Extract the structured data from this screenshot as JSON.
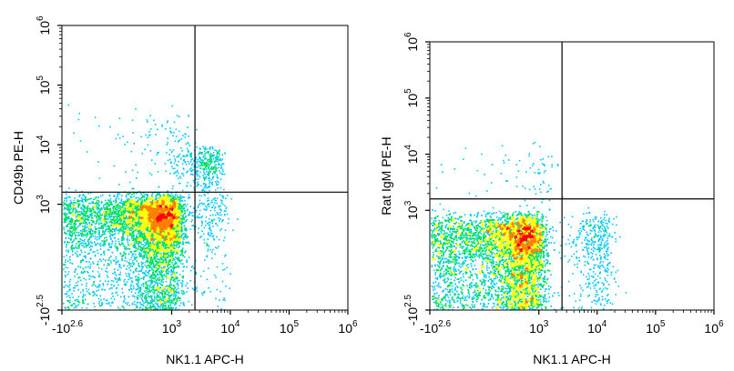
{
  "chart_data": [
    {
      "type": "scatter",
      "xlabel": "NK1.1 APC-H",
      "ylabel": "CD49b PE-H",
      "x_scale": "biexponential",
      "y_scale": "biexponential",
      "x_ticks": [
        {
          "value": -398,
          "base": "-10",
          "exp": "2.6"
        },
        {
          "value": 1000,
          "base": "10",
          "exp": "3"
        },
        {
          "value": 10000,
          "base": "10",
          "exp": "4"
        },
        {
          "value": 100000,
          "base": "10",
          "exp": "5"
        },
        {
          "value": 1000000,
          "base": "10",
          "exp": "6"
        }
      ],
      "y_ticks": [
        {
          "value": -316,
          "base": "-10",
          "exp": "2.5"
        },
        {
          "value": 1000,
          "base": "10",
          "exp": "3"
        },
        {
          "value": 10000,
          "base": "10",
          "exp": "4"
        },
        {
          "value": 100000,
          "base": "10",
          "exp": "5"
        },
        {
          "value": 1000000,
          "base": "10",
          "exp": "6"
        }
      ],
      "gate": {
        "x": 2500,
        "y": 1600
      },
      "populations": [
        {
          "cx": 400,
          "cy": 400,
          "sx": 500,
          "sy": 450,
          "n": 9000
        },
        {
          "cx": 3500,
          "cy": 4000,
          "sx": 1800,
          "sy": 2500,
          "n": 500
        },
        {
          "cx": 700,
          "cy": 5000,
          "sx": 900,
          "sy": 15000,
          "n": 220
        },
        {
          "cx": 4000,
          "cy": 400,
          "sx": 2500,
          "sy": 500,
          "n": 280
        }
      ]
    },
    {
      "type": "scatter",
      "xlabel": "NK1.1 APC-H",
      "ylabel": "Rat IgM PE-H",
      "x_scale": "biexponential",
      "y_scale": "biexponential",
      "x_ticks": [
        {
          "value": -398,
          "base": "-10",
          "exp": "2.6"
        },
        {
          "value": 1000,
          "base": "10",
          "exp": "3"
        },
        {
          "value": 10000,
          "base": "10",
          "exp": "4"
        },
        {
          "value": 100000,
          "base": "10",
          "exp": "5"
        },
        {
          "value": 1000000,
          "base": "10",
          "exp": "6"
        }
      ],
      "y_ticks": [
        {
          "value": -316,
          "base": "-10",
          "exp": "2.5"
        },
        {
          "value": 1000,
          "base": "10",
          "exp": "3"
        },
        {
          "value": 10000,
          "base": "10",
          "exp": "4"
        },
        {
          "value": 100000,
          "base": "10",
          "exp": "5"
        },
        {
          "value": 1000000,
          "base": "10",
          "exp": "6"
        }
      ],
      "gate": {
        "x": 2500,
        "y": 1600
      },
      "populations": [
        {
          "cx": 300,
          "cy": 150,
          "sx": 420,
          "sy": 300,
          "n": 8500
        },
        {
          "cx": 9000,
          "cy": 150,
          "sx": 5000,
          "sy": 300,
          "n": 500
        },
        {
          "cx": 700,
          "cy": 3000,
          "sx": 700,
          "sy": 5000,
          "n": 120
        }
      ]
    }
  ],
  "colormap": [
    "#0000ff",
    "#00c8ff",
    "#00e060",
    "#ffff00",
    "#ff8000",
    "#ff0000"
  ]
}
